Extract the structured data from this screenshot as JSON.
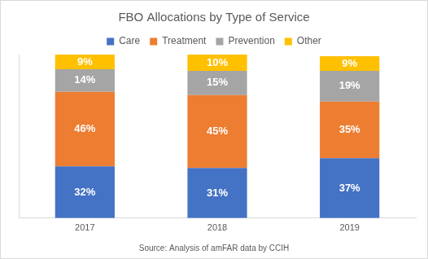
{
  "chart_data": {
    "type": "bar",
    "title": "FBO Allocations by Type of Service",
    "source": "Source: Analysis of amFAR data by CCIH",
    "categories": [
      "2017",
      "2018",
      "2019"
    ],
    "series": [
      {
        "name": "Care",
        "color": "#4472c4",
        "values": [
          32,
          31,
          37
        ],
        "value_labels": [
          "32%",
          "31%",
          "37%"
        ]
      },
      {
        "name": "Treatment",
        "color": "#ed7d31",
        "values": [
          46,
          45,
          35
        ],
        "value_labels": [
          "46%",
          "45%",
          "35%"
        ]
      },
      {
        "name": "Prevention",
        "color": "#a5a5a5",
        "values": [
          14,
          15,
          19
        ],
        "value_labels": [
          "14%",
          "15%",
          "19%"
        ]
      },
      {
        "name": "Other",
        "color": "#ffc000",
        "values": [
          9,
          10,
          9
        ],
        "value_labels": [
          "9%",
          "10%",
          "9%"
        ]
      }
    ],
    "ylim": [
      0,
      101
    ],
    "stacked": true,
    "data_labels": true,
    "tick_labels": "x",
    "grid": false,
    "legend": "top"
  }
}
